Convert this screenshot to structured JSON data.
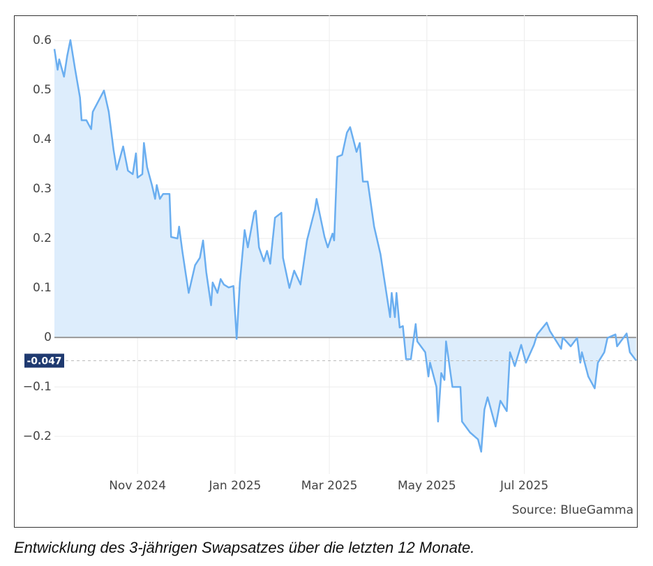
{
  "chart_data": {
    "type": "area",
    "source": "Source: BlueGamma",
    "caption": "Entwicklung des 3-jährigen Swapsatzes über die letzten 12 Monate.",
    "xlim": [
      "2024-09-10",
      "2025-09-09"
    ],
    "xticks": [
      {
        "value": "2024-11-01",
        "label": "Nov 2024"
      },
      {
        "value": "2025-01-01",
        "label": "Jan 2025"
      },
      {
        "value": "2025-03-01",
        "label": "Mar 2025"
      },
      {
        "value": "2025-05-01",
        "label": "May 2025"
      },
      {
        "value": "2025-07-01",
        "label": "Jul 2025"
      }
    ],
    "ylim": [
      -0.276,
      0.651
    ],
    "yticks": [
      0.6,
      0.5,
      0.4,
      0.3,
      0.2,
      0.1,
      0,
      {
        "value": -0.1,
        "label": "−0.1"
      },
      {
        "value": -0.2,
        "label": "−0.2"
      }
    ],
    "grid": true,
    "x": [
      "2024-09-10",
      "2024-09-12",
      "2024-09-13",
      "2024-09-16",
      "2024-09-18",
      "2024-09-20",
      "2024-09-23",
      "2024-09-26",
      "2024-09-27",
      "2024-09-30",
      "2024-10-03",
      "2024-10-04",
      "2024-10-11",
      "2024-10-14",
      "2024-10-17",
      "2024-10-19",
      "2024-10-23",
      "2024-10-26",
      "2024-10-29",
      "2024-10-31",
      "2024-11-01",
      "2024-11-04",
      "2024-11-05",
      "2024-11-07",
      "2024-11-10",
      "2024-11-12",
      "2024-11-13",
      "2024-11-15",
      "2024-11-17",
      "2024-11-21",
      "2024-11-22",
      "2024-11-26",
      "2024-11-27",
      "2024-11-29",
      "2024-12-01",
      "2024-12-03",
      "2024-12-07",
      "2024-12-10",
      "2024-12-12",
      "2024-12-14",
      "2024-12-17",
      "2024-12-18",
      "2024-12-21",
      "2024-12-23",
      "2024-12-25",
      "2024-12-28",
      "2024-12-31",
      "2025-01-02",
      "2025-01-04",
      "2025-01-07",
      "2025-01-09",
      "2025-01-13",
      "2025-01-14",
      "2025-01-16",
      "2025-01-19",
      "2025-01-21",
      "2025-01-23",
      "2025-01-26",
      "2025-01-30",
      "2025-01-31",
      "2025-02-04",
      "2025-02-07",
      "2025-02-11",
      "2025-02-15",
      "2025-02-20",
      "2025-02-21",
      "2025-02-26",
      "2025-02-28",
      "2025-03-03",
      "2025-03-04",
      "2025-03-06",
      "2025-03-09",
      "2025-03-12",
      "2025-03-14",
      "2025-03-18",
      "2025-03-20",
      "2025-03-22",
      "2025-03-25",
      "2025-03-29",
      "2025-04-02",
      "2025-04-04",
      "2025-04-08",
      "2025-04-09",
      "2025-04-11",
      "2025-04-12",
      "2025-04-14",
      "2025-04-16",
      "2025-04-18",
      "2025-04-21",
      "2025-04-24",
      "2025-04-25",
      "2025-04-30",
      "2025-05-02",
      "2025-05-03",
      "2025-05-07",
      "2025-05-08",
      "2025-05-10",
      "2025-05-12",
      "2025-05-13",
      "2025-05-17",
      "2025-05-22",
      "2025-05-23",
      "2025-05-28",
      "2025-06-02",
      "2025-06-04",
      "2025-06-06",
      "2025-06-08",
      "2025-06-13",
      "2025-06-16",
      "2025-06-20",
      "2025-06-22",
      "2025-06-25",
      "2025-06-29",
      "2025-07-02",
      "2025-07-07",
      "2025-07-09",
      "2025-07-15",
      "2025-07-17",
      "2025-07-24",
      "2025-07-25",
      "2025-07-30",
      "2025-08-03",
      "2025-08-05",
      "2025-08-06",
      "2025-08-10",
      "2025-08-14",
      "2025-08-16",
      "2025-08-20",
      "2025-08-22",
      "2025-08-27",
      "2025-08-28",
      "2025-09-03",
      "2025-09-05",
      "2025-09-09"
    ],
    "series": [
      {
        "color": "#6aaef0",
        "fill": "#ddedfc",
        "values": [
          0.583,
          0.541,
          0.562,
          0.527,
          0.569,
          0.601,
          0.541,
          0.485,
          0.439,
          0.439,
          0.421,
          0.456,
          0.499,
          0.456,
          0.379,
          0.339,
          0.386,
          0.337,
          0.33,
          0.372,
          0.323,
          0.33,
          0.393,
          0.344,
          0.308,
          0.28,
          0.308,
          0.28,
          0.29,
          0.29,
          0.203,
          0.2,
          0.224,
          0.175,
          0.132,
          0.09,
          0.146,
          0.161,
          0.196,
          0.132,
          0.065,
          0.111,
          0.09,
          0.118,
          0.107,
          0.101,
          0.104,
          -0.003,
          0.111,
          0.217,
          0.182,
          0.252,
          0.256,
          0.182,
          0.154,
          0.175,
          0.149,
          0.242,
          0.252,
          0.161,
          0.1,
          0.135,
          0.107,
          0.196,
          0.259,
          0.28,
          0.203,
          0.182,
          0.21,
          0.196,
          0.365,
          0.369,
          0.414,
          0.425,
          0.375,
          0.393,
          0.315,
          0.315,
          0.224,
          0.168,
          0.125,
          0.041,
          0.09,
          0.041,
          0.09,
          0.02,
          0.023,
          -0.044,
          -0.044,
          0.027,
          -0.008,
          -0.03,
          -0.079,
          -0.051,
          -0.1,
          -0.17,
          -0.072,
          -0.086,
          -0.008,
          -0.1,
          -0.1,
          -0.17,
          -0.192,
          -0.206,
          -0.231,
          -0.146,
          -0.121,
          -0.18,
          -0.128,
          -0.149,
          -0.03,
          -0.058,
          -0.015,
          -0.051,
          -0.015,
          0.006,
          0.03,
          0.013,
          -0.023,
          0,
          -0.018,
          -0.001,
          -0.051,
          -0.03,
          -0.079,
          -0.103,
          -0.051,
          -0.03,
          -0.001,
          0.006,
          -0.018,
          0.008,
          -0.03,
          -0.047
        ]
      }
    ]
  }
}
